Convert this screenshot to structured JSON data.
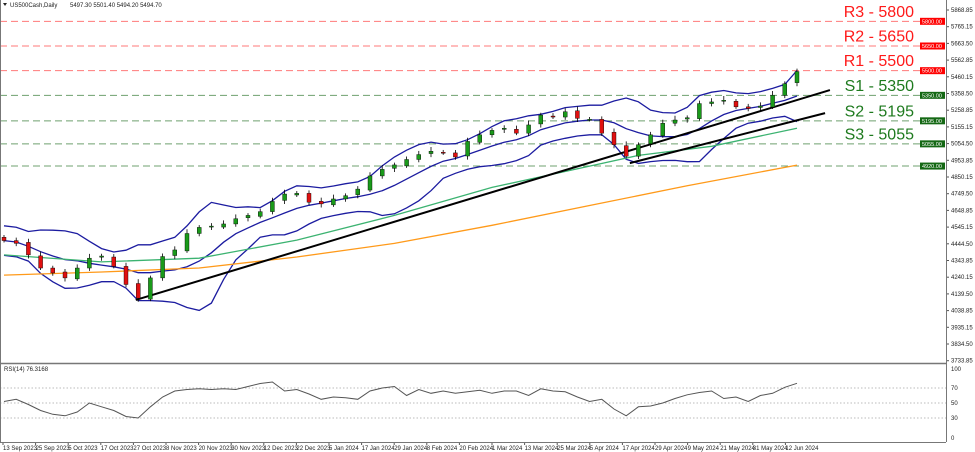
{
  "header": {
    "symbol": "US500Cash,Daily",
    "ohlc": "5497.30 5501.40 5494.20 5494.70"
  },
  "rsi_label": "RSI(14) 76.3168",
  "price_axis": [
    "5868.85",
    "5765.15",
    "5663.50",
    "5562.85",
    "5460.15",
    "5358.50",
    "5258.85",
    "5155.15",
    "5054.50",
    "4953.85",
    "4850.15",
    "4749.50",
    "4648.85",
    "4545.15",
    "4444.50",
    "4343.85",
    "4240.15",
    "4139.50",
    "4038.85",
    "3935.15",
    "3834.50",
    "3733.85"
  ],
  "rsi_axis": [
    "100",
    "70",
    "50",
    "30",
    "0"
  ],
  "levels": [
    {
      "name": "R3",
      "label": "R3 - 5800",
      "price": 5800,
      "tag": "5800.00",
      "color": "#ff1a1a"
    },
    {
      "name": "R2",
      "label": "R2 - 5650",
      "price": 5650,
      "tag": "5650.00",
      "color": "#ff1a1a"
    },
    {
      "name": "R1",
      "label": "R1 - 5500",
      "price": 5500,
      "tag": "5500.00",
      "color": "#ff1a1a"
    },
    {
      "name": "S1",
      "label": "S1 - 5350",
      "price": 5350,
      "tag": "5350.00",
      "color": "#1e7a1e"
    },
    {
      "name": "S2",
      "label": "S2 - 5195",
      "price": 5195,
      "tag": "5195.00",
      "color": "#1e7a1e"
    },
    {
      "name": "S3",
      "label": "S3 - 5055",
      "price": 5055,
      "tag": "5055.00",
      "color": "#1e7a1e"
    },
    {
      "name": "S4",
      "label": "",
      "price": 4920,
      "tag": "4920.00",
      "color": "#1e7a1e"
    }
  ],
  "chart_data": {
    "type": "candlestick",
    "title": "US500Cash,Daily",
    "x_unit": "bar index (3 trading days per step)",
    "ylim": [
      3733.85,
      5868.85
    ],
    "dates": [
      "13 Sep 2023",
      "25 Sep 2023",
      "5 Oct 2023",
      "17 Oct 2023",
      "27 Oct 2023",
      "8 Nov 2023",
      "20 Nov 2023",
      "30 Nov 2023",
      "12 Dec 2023",
      "22 Dec 2023",
      "5 Jan 2024",
      "17 Jan 2024",
      "29 Jan 2024",
      "8 Feb 2024",
      "20 Feb 2024",
      "1 Mar 2024",
      "13 Mar 2024",
      "25 Mar 2024",
      "5 Apr 2024",
      "17 Apr 2024",
      "29 Apr 2024",
      "9 May 2024",
      "21 May 2024",
      "31 May 2024",
      "12 Jun 2024"
    ],
    "close": [
      4467,
      4450,
      4380,
      4300,
      4270,
      4240,
      4300,
      4360,
      4373,
      4310,
      4200,
      4117,
      4240,
      4370,
      4410,
      4510,
      4547,
      4555,
      4568,
      4600,
      4620,
      4643,
      4705,
      4750,
      4754,
      4700,
      4690,
      4720,
      4740,
      4780,
      4860,
      4900,
      4927,
      4960,
      4990,
      5010,
      5000,
      4975,
      5070,
      5110,
      5137,
      5150,
      5120,
      5170,
      5230,
      5218,
      5250,
      5210,
      5204,
      5120,
      5050,
      4980,
      5050,
      5110,
      5180,
      5200,
      5214,
      5300,
      5310,
      5320,
      5280,
      5270,
      5285,
      5350,
      5421,
      5494.7
    ],
    "ma_green": [
      [
        0,
        4380
      ],
      [
        8,
        4337
      ],
      [
        16,
        4360
      ],
      [
        24,
        4470
      ],
      [
        32,
        4620
      ],
      [
        40,
        4790
      ],
      [
        48,
        4920
      ],
      [
        52,
        4985
      ],
      [
        58,
        5040
      ],
      [
        65,
        5150
      ]
    ],
    "ma_orange": [
      [
        0,
        4257
      ],
      [
        8,
        4276
      ],
      [
        16,
        4300
      ],
      [
        24,
        4367
      ],
      [
        32,
        4450
      ],
      [
        40,
        4560
      ],
      [
        48,
        4680
      ],
      [
        56,
        4800
      ],
      [
        65,
        4926
      ]
    ],
    "trendlines": [
      [
        [
          10.8,
          4106
        ],
        [
          67.7,
          5382
        ]
      ],
      [
        [
          51.3,
          4938
        ],
        [
          67.3,
          5242
        ]
      ]
    ],
    "rsi": [
      52,
      55,
      48,
      40,
      35,
      33,
      38,
      50,
      45,
      40,
      32,
      30,
      45,
      58,
      66,
      68,
      69,
      68,
      69,
      68,
      72,
      76,
      78,
      66,
      68,
      62,
      55,
      58,
      57,
      55,
      66,
      70,
      72,
      60,
      68,
      63,
      66,
      63,
      65,
      67,
      63,
      66,
      66,
      60,
      69,
      66,
      65,
      58,
      52,
      55,
      42,
      33,
      45,
      46,
      50,
      56,
      61,
      64,
      66,
      56,
      58,
      52,
      60,
      63,
      71,
      76.3
    ],
    "rsi_levels": [
      70,
      50,
      30
    ]
  }
}
